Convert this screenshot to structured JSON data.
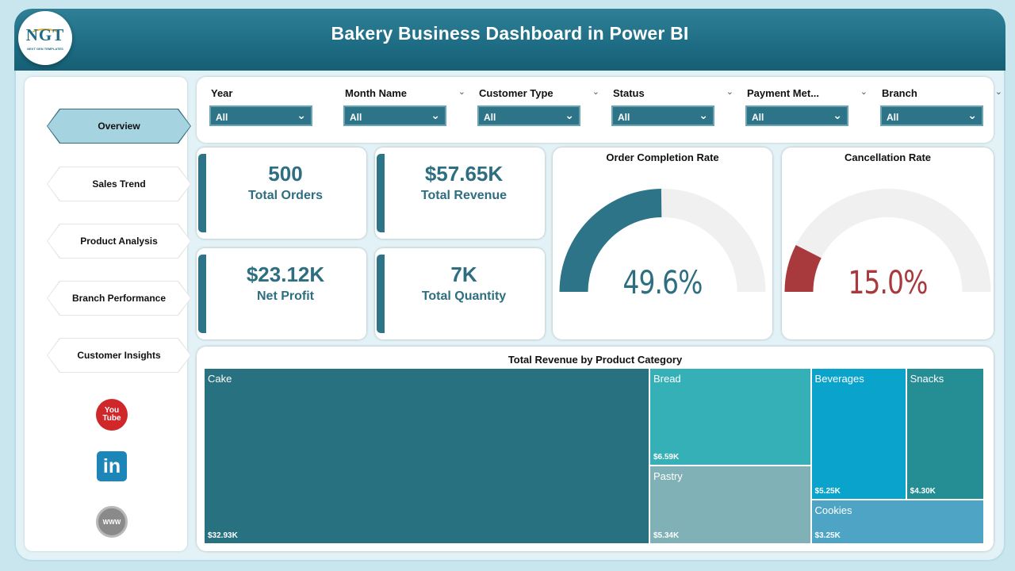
{
  "header": {
    "title": "Bakery Business Dashboard in Power BI",
    "logo_text": "NGT",
    "logo_subtext": "NEXT GEN TEMPLATES"
  },
  "sidebar": {
    "items": [
      {
        "label": "Overview",
        "active": true
      },
      {
        "label": "Sales Trend",
        "active": false
      },
      {
        "label": "Product Analysis",
        "active": false
      },
      {
        "label": "Branch Performance",
        "active": false
      },
      {
        "label": "Customer Insights",
        "active": false
      }
    ],
    "social": {
      "youtube_line1": "You",
      "youtube_line2": "Tube",
      "linkedin": "in",
      "website": "WWW"
    }
  },
  "filters": [
    {
      "label": "Year",
      "value": "All"
    },
    {
      "label": "Month Name",
      "value": "All"
    },
    {
      "label": "Customer Type",
      "value": "All"
    },
    {
      "label": "Status",
      "value": "All"
    },
    {
      "label": "Payment Met...",
      "value": "All"
    },
    {
      "label": "Branch",
      "value": "All"
    }
  ],
  "kpis": [
    {
      "value": "500",
      "label": "Total Orders"
    },
    {
      "value": "$57.65K",
      "label": "Total Revenue"
    },
    {
      "value": "$23.12K",
      "label": "Net Profit"
    },
    {
      "value": "7K",
      "label": "Total Quantity"
    }
  ],
  "gauges": [
    {
      "title": "Order Completion Rate",
      "value_text": "49.6%",
      "fraction": 0.496,
      "color": "#2d7489"
    },
    {
      "title": "Cancellation Rate",
      "value_text": "15.0%",
      "fraction": 0.15,
      "color": "#a83a3e"
    }
  ],
  "colors": {
    "accent": "#2d7489",
    "header": "#1d6c83",
    "gauge_track": "#f1f0f0"
  },
  "chart_data": {
    "type": "treemap",
    "title": "Total Revenue by Product Category",
    "categories": [
      "Cake",
      "Bread",
      "Pastry",
      "Beverages",
      "Snacks",
      "Cookies"
    ],
    "values": [
      32.93,
      6.59,
      5.34,
      5.25,
      4.3,
      3.25
    ],
    "value_labels": [
      "$32.93K",
      "$6.59K",
      "$5.34K",
      "$5.25K",
      "$4.30K",
      "$3.25K"
    ],
    "colors": [
      "#277181",
      "#35b0b7",
      "#80b1b6",
      "#0aa3cc",
      "#258d94",
      "#4ea4c4"
    ]
  }
}
